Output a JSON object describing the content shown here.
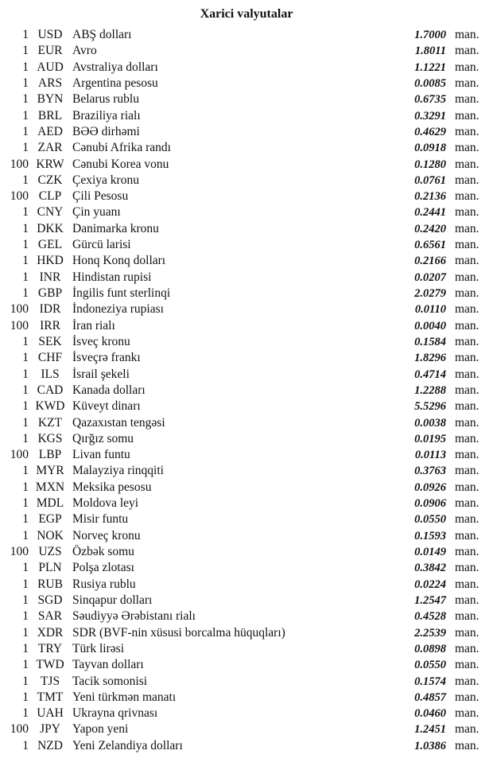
{
  "title": "Xarici valyutalar",
  "unit_label": "man.",
  "rows": [
    {
      "amount": "1",
      "code": "USD",
      "name": "ABŞ dolları",
      "rate": "1.7000"
    },
    {
      "amount": "1",
      "code": "EUR",
      "name": "Avro",
      "rate": "1.8011"
    },
    {
      "amount": "1",
      "code": "AUD",
      "name": "Avstraliya dolları",
      "rate": "1.1221"
    },
    {
      "amount": "1",
      "code": "ARS",
      "name": "Argentina pesosu",
      "rate": "0.0085"
    },
    {
      "amount": "1",
      "code": "BYN",
      "name": "Belarus rublu",
      "rate": "0.6735"
    },
    {
      "amount": "1",
      "code": "BRL",
      "name": "Braziliya rialı",
      "rate": "0.3291"
    },
    {
      "amount": "1",
      "code": "AED",
      "name": "BƏƏ dirhəmi",
      "rate": "0.4629"
    },
    {
      "amount": "1",
      "code": "ZAR",
      "name": "Cənubi Afrika randı",
      "rate": "0.0918"
    },
    {
      "amount": "100",
      "code": "KRW",
      "name": "Cənubi Korea vonu",
      "rate": "0.1280"
    },
    {
      "amount": "1",
      "code": "CZK",
      "name": "Çexiya kronu",
      "rate": "0.0761"
    },
    {
      "amount": "100",
      "code": "CLP",
      "name": "Çili Pesosu",
      "rate": "0.2136"
    },
    {
      "amount": "1",
      "code": "CNY",
      "name": "Çin yuanı",
      "rate": "0.2441"
    },
    {
      "amount": "1",
      "code": "DKK",
      "name": "Danimarka kronu",
      "rate": "0.2420"
    },
    {
      "amount": "1",
      "code": "GEL",
      "name": "Gürcü larisi",
      "rate": "0.6561"
    },
    {
      "amount": "1",
      "code": "HKD",
      "name": "Honq Konq dolları",
      "rate": "0.2166"
    },
    {
      "amount": "1",
      "code": "INR",
      "name": "Hindistan rupisi",
      "rate": "0.0207"
    },
    {
      "amount": "1",
      "code": "GBP",
      "name": "İngilis funt sterlinqi",
      "rate": "2.0279"
    },
    {
      "amount": "100",
      "code": "IDR",
      "name": "İndoneziya rupiası",
      "rate": "0.0110"
    },
    {
      "amount": "100",
      "code": "IRR",
      "name": "İran rialı",
      "rate": "0.0040"
    },
    {
      "amount": "1",
      "code": "SEK",
      "name": "İsveç kronu",
      "rate": "0.1584"
    },
    {
      "amount": "1",
      "code": "CHF",
      "name": "İsveçrə frankı",
      "rate": "1.8296"
    },
    {
      "amount": "1",
      "code": "ILS",
      "name": "İsrail şekeli",
      "rate": "0.4714"
    },
    {
      "amount": "1",
      "code": "CAD",
      "name": "Kanada dolları",
      "rate": "1.2288"
    },
    {
      "amount": "1",
      "code": "KWD",
      "name": "Küveyt dinarı",
      "rate": "5.5296"
    },
    {
      "amount": "1",
      "code": "KZT",
      "name": "Qazaxıstan tengəsi",
      "rate": "0.0038"
    },
    {
      "amount": "1",
      "code": "KGS",
      "name": "Qırğız somu",
      "rate": "0.0195"
    },
    {
      "amount": "100",
      "code": "LBP",
      "name": "Livan funtu",
      "rate": "0.0113"
    },
    {
      "amount": "1",
      "code": "MYR",
      "name": "Malayziya rinqqiti",
      "rate": "0.3763"
    },
    {
      "amount": "1",
      "code": "MXN",
      "name": "Meksika pesosu",
      "rate": "0.0926"
    },
    {
      "amount": "1",
      "code": "MDL",
      "name": "Moldova leyi",
      "rate": "0.0906"
    },
    {
      "amount": "1",
      "code": "EGP",
      "name": "Misir funtu",
      "rate": "0.0550"
    },
    {
      "amount": "1",
      "code": "NOK",
      "name": "Norveç kronu",
      "rate": "0.1593"
    },
    {
      "amount": "100",
      "code": "UZS",
      "name": "Özbək somu",
      "rate": "0.0149"
    },
    {
      "amount": "1",
      "code": "PLN",
      "name": "Polşa zlotası",
      "rate": "0.3842"
    },
    {
      "amount": "1",
      "code": "RUB",
      "name": "Rusiya rublu",
      "rate": "0.0224"
    },
    {
      "amount": "1",
      "code": "SGD",
      "name": "Sinqapur dolları",
      "rate": "1.2547"
    },
    {
      "amount": "1",
      "code": "SAR",
      "name": "Səudiyyə Ərəbistanı rialı",
      "rate": "0.4528"
    },
    {
      "amount": "1",
      "code": "XDR",
      "name": "SDR (BVF-nin xüsusi borcalma hüquqları)",
      "rate": "2.2539"
    },
    {
      "amount": "1",
      "code": "TRY",
      "name": "Türk lirəsi",
      "rate": "0.0898"
    },
    {
      "amount": "1",
      "code": "TWD",
      "name": "Tayvan dolları",
      "rate": "0.0550"
    },
    {
      "amount": "1",
      "code": "TJS",
      "name": "Tacik somonisi",
      "rate": "0.1574"
    },
    {
      "amount": "1",
      "code": "TMT",
      "name": "Yeni türkmən manatı",
      "rate": "0.4857"
    },
    {
      "amount": "1",
      "code": "UAH",
      "name": "Ukrayna qrivnası",
      "rate": "0.0460"
    },
    {
      "amount": "100",
      "code": "JPY",
      "name": "Yapon yeni",
      "rate": "1.2451"
    },
    {
      "amount": "1",
      "code": "NZD",
      "name": "Yeni Zelandiya dolları",
      "rate": "1.0386"
    }
  ]
}
